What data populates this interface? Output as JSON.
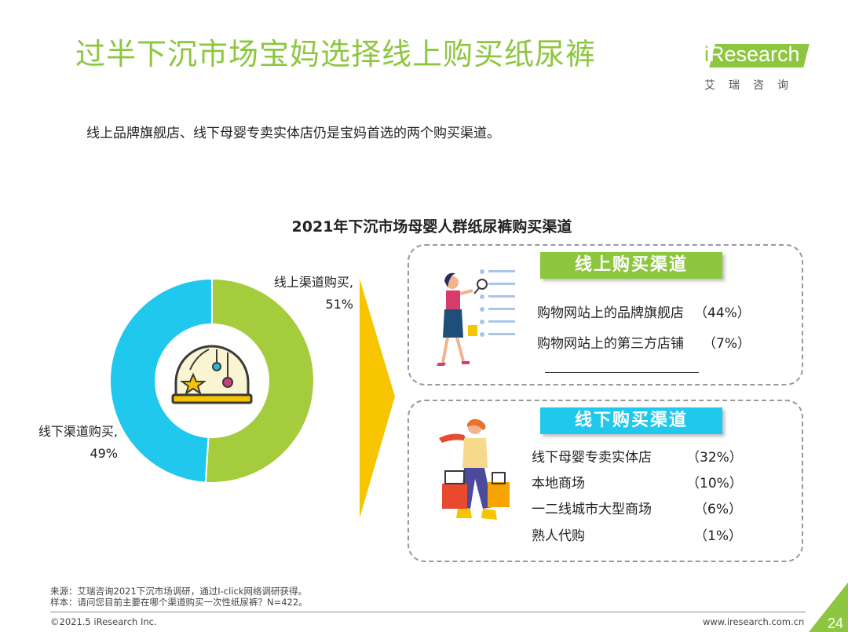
{
  "title": "过半下沉市场宝妈选择线上购买纸尿裤",
  "logo": {
    "brand_prefix": "i",
    "brand_rest": "Research",
    "chinese": "艾瑞咨询",
    "color": "#8dc63f"
  },
  "subtitle": "线上品牌旗舰店、线下母婴专卖实体店仍是宝妈首选的两个购买渠道。",
  "chart_data": {
    "type": "pie",
    "title": "2021年下沉市场母婴人群纸尿裤购买渠道",
    "slices": [
      {
        "label": "线上渠道购买,",
        "value": 51,
        "value_text": "51%",
        "color": "#a4cc3d"
      },
      {
        "label": "线下渠道购买,",
        "value": 49,
        "value_text": "49%",
        "color": "#1fc8ec"
      }
    ],
    "breakdown": [
      {
        "group": "线上购买渠道",
        "color": "#8dc63f",
        "items": [
          {
            "label": "购物网站上的品牌旗舰店",
            "value": 44,
            "value_text": "（44%）"
          },
          {
            "label": "购物网站上的第三方店铺",
            "value": 7,
            "value_text": "（7%）"
          }
        ]
      },
      {
        "group": "线下购买渠道",
        "color": "#1fc8ec",
        "items": [
          {
            "label": "线下母婴专卖实体店",
            "value": 32,
            "value_text": "（32%）"
          },
          {
            "label": "本地商场",
            "value": 10,
            "value_text": "（10%）"
          },
          {
            "label": "一二线城市大型商场",
            "value": 6,
            "value_text": "（6%）"
          },
          {
            "label": "熟人代购",
            "value": 1,
            "value_text": "（1%）"
          }
        ]
      }
    ]
  },
  "footer": {
    "source": "来源：艾瑞咨询2021下沉市场调研，通过I-click网络调研获得。",
    "sample": "样本：请问您目前主要在哪个渠道购买一次性纸尿裤？N=422。",
    "copyright": "©2021.5 iResearch Inc.",
    "website": "www.iresearch.com.cn",
    "page_number": "24"
  },
  "colors": {
    "accent_green": "#8dc63f",
    "accent_blue": "#1fc8ec",
    "arrow_yellow": "#f7c400"
  },
  "icons": [
    "baby-toy-icon",
    "woman-shopping-online-illustration",
    "woman-with-shopping-bags-illustration"
  ]
}
